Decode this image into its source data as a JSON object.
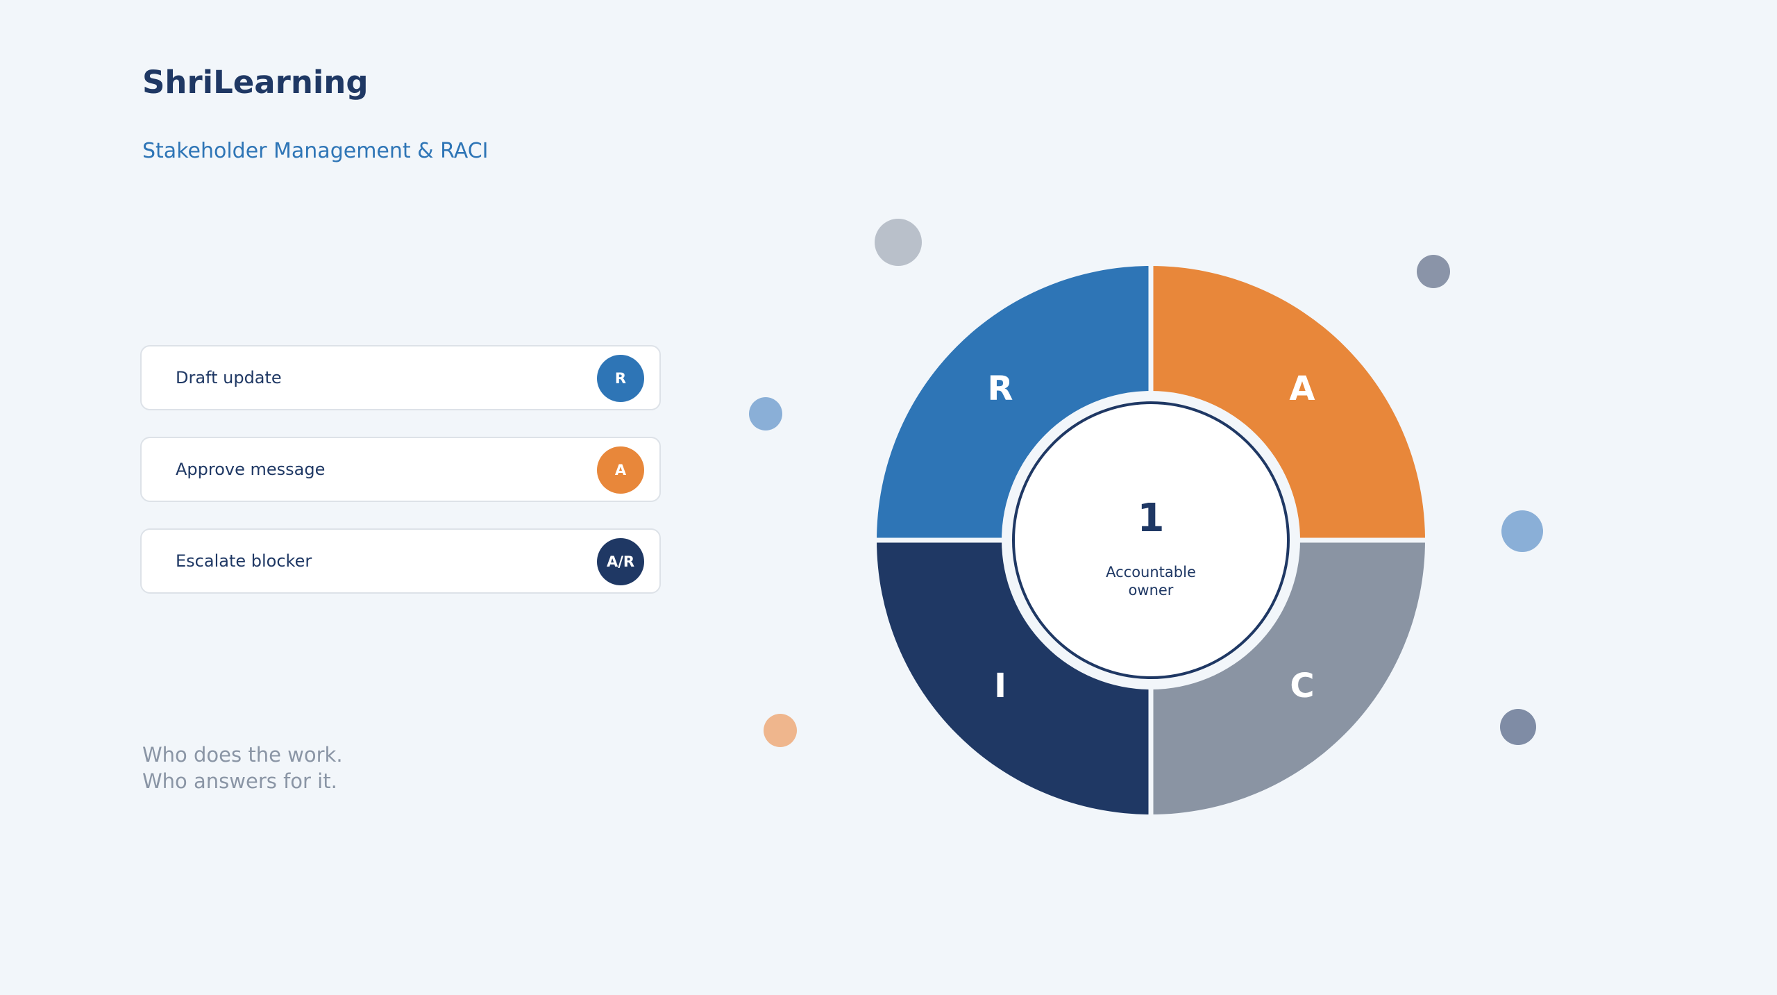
{
  "brand": "ShriLearning",
  "subtitle": "Stakeholder Management & RACI",
  "tasks": [
    {
      "label": "Draft update",
      "badge": "R",
      "color": "#2e75b6"
    },
    {
      "label": "Approve message",
      "badge": "A",
      "color": "#e8873a"
    },
    {
      "label": "Escalate blocker",
      "badge": "A/R",
      "color": "#1f3864"
    }
  ],
  "tagline": [
    "Who does the work.",
    "Who answers for it."
  ],
  "wheel": {
    "segments": [
      {
        "letter": "R",
        "color": "#2e75b6"
      },
      {
        "letter": "A",
        "color": "#e8873a"
      },
      {
        "letter": "C",
        "color": "#8a94a3"
      },
      {
        "letter": "I",
        "color": "#1f3864"
      }
    ],
    "center_value": "1",
    "center_caption": [
      "Accountable",
      "owner"
    ]
  },
  "decor_colors": [
    "#b9c0ca",
    "#8a94a8",
    "#8aafd7",
    "#efb68d",
    "#7f8ca5"
  ]
}
